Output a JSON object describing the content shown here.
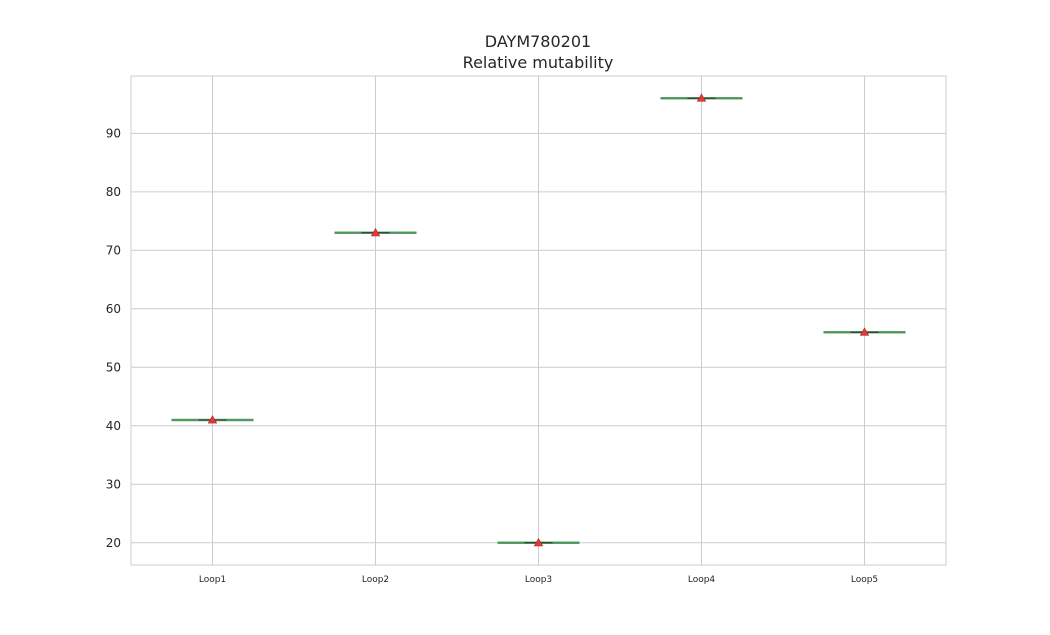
{
  "chart_data": {
    "type": "box",
    "title": "DAYM780201",
    "subtitle": "Relative mutability",
    "xlabel": "",
    "ylabel": "",
    "categories": [
      "Loop1",
      "Loop2",
      "Loop3",
      "Loop4",
      "Loop5"
    ],
    "values": [
      41,
      73,
      20,
      96,
      56
    ],
    "ylim": [
      16.2,
      99.8
    ],
    "yticks": [
      20,
      30,
      40,
      50,
      60,
      70,
      80,
      90
    ],
    "grid": true,
    "legend": "none",
    "mean_marker": "triangle",
    "colors": {
      "grid": "#cccccc",
      "frame": "#cccccc",
      "median": "#4c9a5b",
      "box": "#2f2f2f",
      "mean_marker": "#e03a3a",
      "text": "#262626",
      "background": "#ffffff"
    }
  }
}
